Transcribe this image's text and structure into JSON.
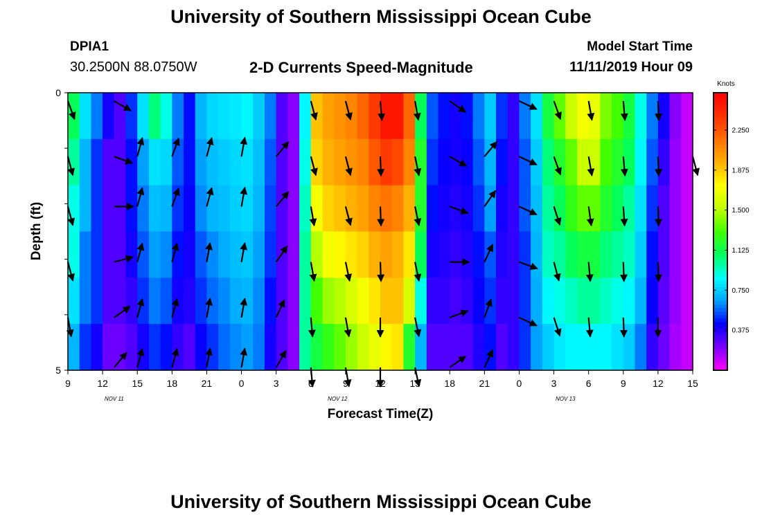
{
  "header": {
    "title_top": "University of Southern Mississippi Ocean Cube",
    "title_bottom": "University of Southern Mississippi Ocean Cube",
    "station_id": "DPIA1",
    "coords": "30.2500N 88.0750W",
    "subtitle": "2-D Currents Speed-Magnitude",
    "model_label": "Model Start Time",
    "model_time": "11/11/2019 Hour 09"
  },
  "chart_data": {
    "type": "heatmap",
    "title": "2-D Currents Speed-Magnitude",
    "xlabel": "Forecast Time(Z)",
    "ylabel": "Depth (ft)",
    "x_tick_labels": [
      "9",
      "12",
      "15",
      "18",
      "21",
      "0",
      "3",
      "6",
      "9",
      "12",
      "15",
      "18",
      "21",
      "0",
      "3",
      "6",
      "9",
      "12",
      "15"
    ],
    "x_day_labels": [
      "NOV 11",
      "NOV 12",
      "NOV 13"
    ],
    "y_ticks": [
      0,
      5
    ],
    "y_range": [
      0,
      5
    ],
    "x_range_hours": [
      0,
      54
    ],
    "colorbar": {
      "unit": "Knots",
      "range": [
        0,
        2.6
      ],
      "ticks": [
        "0.375",
        "0.750",
        "1.125",
        "1.500",
        "1.875",
        "2.250"
      ],
      "colors": [
        "#ff00ff",
        "#8000ff",
        "#0000ff",
        "#00a0ff",
        "#00ffff",
        "#00ff60",
        "#40ff00",
        "#c0ff00",
        "#ffff00",
        "#ffb000",
        "#ff7000",
        "#ff3000",
        "#ff0000"
      ]
    },
    "depth_bins": 6,
    "speed_series": [
      {
        "hours_from_start": 0,
        "speed": [
          1.1,
          1.0,
          0.9,
          0.9,
          0.8,
          0.7
        ]
      },
      {
        "hours_from_start": 1,
        "speed": [
          0.8,
          0.7,
          0.7,
          0.6,
          0.6,
          0.5
        ]
      },
      {
        "hours_from_start": 2,
        "speed": [
          0.6,
          0.5,
          0.5,
          0.5,
          0.5,
          0.4
        ]
      },
      {
        "hours_from_start": 3,
        "speed": [
          0.4,
          0.3,
          0.3,
          0.3,
          0.3,
          0.25
        ]
      },
      {
        "hours_from_start": 4,
        "speed": [
          0.3,
          0.3,
          0.3,
          0.3,
          0.3,
          0.25
        ]
      },
      {
        "hours_from_start": 5,
        "speed": [
          0.5,
          0.45,
          0.45,
          0.4,
          0.35,
          0.3
        ]
      },
      {
        "hours_from_start": 6,
        "speed": [
          0.8,
          0.65,
          0.6,
          0.55,
          0.5,
          0.4
        ]
      },
      {
        "hours_from_start": 7,
        "speed": [
          1.05,
          0.8,
          0.72,
          0.65,
          0.6,
          0.5
        ]
      },
      {
        "hours_from_start": 8,
        "speed": [
          0.9,
          0.78,
          0.7,
          0.62,
          0.55,
          0.45
        ]
      },
      {
        "hours_from_start": 9,
        "speed": [
          0.6,
          0.55,
          0.5,
          0.45,
          0.4,
          0.35
        ]
      },
      {
        "hours_from_start": 10,
        "speed": [
          0.45,
          0.45,
          0.42,
          0.4,
          0.38,
          0.3
        ]
      },
      {
        "hours_from_start": 11,
        "speed": [
          0.7,
          0.65,
          0.62,
          0.55,
          0.5,
          0.42
        ]
      },
      {
        "hours_from_start": 12,
        "speed": [
          0.78,
          0.72,
          0.7,
          0.62,
          0.58,
          0.5
        ]
      },
      {
        "hours_from_start": 13,
        "speed": [
          0.8,
          0.75,
          0.72,
          0.68,
          0.62,
          0.58
        ]
      },
      {
        "hours_from_start": 14,
        "speed": [
          0.82,
          0.78,
          0.76,
          0.72,
          0.68,
          0.62
        ]
      },
      {
        "hours_from_start": 15,
        "speed": [
          0.85,
          0.8,
          0.78,
          0.74,
          0.7,
          0.65
        ]
      },
      {
        "hours_from_start": 16,
        "speed": [
          0.75,
          0.72,
          0.7,
          0.66,
          0.62,
          0.6
        ]
      },
      {
        "hours_from_start": 17,
        "speed": [
          0.6,
          0.55,
          0.52,
          0.5,
          0.45,
          0.4
        ]
      },
      {
        "hours_from_start": 18,
        "speed": [
          0.3,
          0.3,
          0.3,
          0.3,
          0.3,
          0.3
        ]
      },
      {
        "hours_from_start": 19,
        "speed": [
          0.2,
          0.2,
          0.2,
          0.2,
          0.2,
          0.2
        ]
      },
      {
        "hours_from_start": 20,
        "speed": [
          0.85,
          0.9,
          0.95,
          1.0,
          1.0,
          1.0
        ]
      },
      {
        "hours_from_start": 21,
        "speed": [
          1.9,
          1.85,
          1.7,
          1.5,
          1.3,
          1.15
        ]
      },
      {
        "hours_from_start": 22,
        "speed": [
          2.0,
          1.95,
          1.85,
          1.7,
          1.45,
          1.25
        ]
      },
      {
        "hours_from_start": 23,
        "speed": [
          2.05,
          2.0,
          1.9,
          1.75,
          1.5,
          1.35
        ]
      },
      {
        "hours_from_start": 24,
        "speed": [
          2.1,
          2.05,
          1.95,
          1.8,
          1.6,
          1.45
        ]
      },
      {
        "hours_from_start": 25,
        "speed": [
          2.2,
          2.1,
          2.0,
          1.85,
          1.7,
          1.55
        ]
      },
      {
        "hours_from_start": 26,
        "speed": [
          2.35,
          2.25,
          2.1,
          1.95,
          1.8,
          1.65
        ]
      },
      {
        "hours_from_start": 27,
        "speed": [
          2.5,
          2.35,
          2.15,
          2.0,
          1.9,
          1.75
        ]
      },
      {
        "hours_from_start": 28,
        "speed": [
          2.5,
          2.3,
          2.1,
          1.95,
          1.9,
          1.8
        ]
      },
      {
        "hours_from_start": 29,
        "speed": [
          2.2,
          2.1,
          1.95,
          1.8,
          1.6,
          1.2
        ]
      },
      {
        "hours_from_start": 30,
        "speed": [
          1.1,
          1.2,
          1.2,
          1.1,
          0.9,
          0.7
        ]
      },
      {
        "hours_from_start": 31,
        "speed": [
          0.55,
          0.5,
          0.45,
          0.4,
          0.35,
          0.3
        ]
      },
      {
        "hours_from_start": 32,
        "speed": [
          0.45,
          0.42,
          0.4,
          0.38,
          0.35,
          0.3
        ]
      },
      {
        "hours_from_start": 33,
        "speed": [
          0.4,
          0.4,
          0.38,
          0.35,
          0.32,
          0.3
        ]
      },
      {
        "hours_from_start": 34,
        "speed": [
          0.45,
          0.42,
          0.4,
          0.38,
          0.35,
          0.3
        ]
      },
      {
        "hours_from_start": 35,
        "speed": [
          0.6,
          0.55,
          0.5,
          0.45,
          0.42,
          0.38
        ]
      },
      {
        "hours_from_start": 36,
        "speed": [
          0.75,
          0.7,
          0.65,
          0.55,
          0.5,
          0.45
        ]
      },
      {
        "hours_from_start": 37,
        "speed": [
          0.5,
          0.45,
          0.4,
          0.38,
          0.35,
          0.3
        ]
      },
      {
        "hours_from_start": 38,
        "speed": [
          0.35,
          0.35,
          0.35,
          0.35,
          0.35,
          0.35
        ]
      },
      {
        "hours_from_start": 39,
        "speed": [
          0.6,
          0.55,
          0.55,
          0.5,
          0.5,
          0.5
        ]
      },
      {
        "hours_from_start": 40,
        "speed": [
          0.8,
          0.75,
          0.72,
          0.7,
          0.68,
          0.65
        ]
      },
      {
        "hours_from_start": 41,
        "speed": [
          1.15,
          1.05,
          1.0,
          0.95,
          0.85,
          0.75
        ]
      },
      {
        "hours_from_start": 42,
        "speed": [
          1.35,
          1.2,
          1.1,
          1.0,
          0.9,
          0.82
        ]
      },
      {
        "hours_from_start": 43,
        "speed": [
          1.55,
          1.35,
          1.25,
          1.1,
          0.95,
          0.85
        ]
      },
      {
        "hours_from_start": 44,
        "speed": [
          1.7,
          1.55,
          1.35,
          1.15,
          1.0,
          0.85
        ]
      },
      {
        "hours_from_start": 45,
        "speed": [
          1.65,
          1.55,
          1.35,
          1.15,
          1.0,
          0.85
        ]
      },
      {
        "hours_from_start": 46,
        "speed": [
          1.4,
          1.3,
          1.2,
          1.05,
          0.95,
          0.85
        ]
      },
      {
        "hours_from_start": 47,
        "speed": [
          1.3,
          1.2,
          1.1,
          1.0,
          0.9,
          0.8
        ]
      },
      {
        "hours_from_start": 48,
        "speed": [
          1.15,
          1.1,
          1.0,
          0.95,
          0.85,
          0.75
        ]
      },
      {
        "hours_from_start": 49,
        "speed": [
          0.9,
          0.85,
          0.8,
          0.75,
          0.7,
          0.6
        ]
      },
      {
        "hours_from_start": 50,
        "speed": [
          0.6,
          0.55,
          0.5,
          0.45,
          0.42,
          0.35
        ]
      },
      {
        "hours_from_start": 51,
        "speed": [
          0.4,
          0.35,
          0.3,
          0.3,
          0.28,
          0.25
        ]
      },
      {
        "hours_from_start": 52,
        "speed": [
          0.2,
          0.18,
          0.18,
          0.18,
          0.18,
          0.15
        ]
      },
      {
        "hours_from_start": 53,
        "speed": [
          0.1,
          0.1,
          0.1,
          0.1,
          0.1,
          0.1
        ]
      }
    ],
    "vector_rows_depth": [
      0.15,
      1.15,
      2.05,
      3.05,
      4.05,
      4.95
    ],
    "vector_series": [
      {
        "hours_from_start": 0,
        "angles": [
          160,
          165,
          165,
          165,
          170,
          null
        ]
      },
      {
        "hours_from_start": 4,
        "angles": [
          120,
          110,
          90,
          75,
          55,
          40
        ]
      },
      {
        "hours_from_start": 6,
        "angles": [
          null,
          15,
          15,
          15,
          15,
          15
        ]
      },
      {
        "hours_from_start": 9,
        "angles": [
          null,
          20,
          20,
          15,
          15,
          15
        ]
      },
      {
        "hours_from_start": 12,
        "angles": [
          null,
          15,
          15,
          10,
          10,
          10
        ]
      },
      {
        "hours_from_start": 15,
        "angles": [
          null,
          10,
          10,
          10,
          10,
          10
        ]
      },
      {
        "hours_from_start": 18,
        "angles": [
          null,
          40,
          40,
          35,
          25,
          30
        ]
      },
      {
        "hours_from_start": 21,
        "angles": [
          165,
          165,
          170,
          170,
          175,
          175
        ]
      },
      {
        "hours_from_start": 24,
        "angles": [
          165,
          165,
          165,
          168,
          170,
          170
        ]
      },
      {
        "hours_from_start": 27,
        "angles": [
          175,
          178,
          178,
          178,
          180,
          180
        ]
      },
      {
        "hours_from_start": 30,
        "angles": [
          170,
          168,
          168,
          168,
          168,
          168
        ]
      },
      {
        "hours_from_start": 33,
        "angles": [
          125,
          120,
          110,
          90,
          70,
          55
        ]
      },
      {
        "hours_from_start": 36,
        "angles": [
          null,
          40,
          35,
          25,
          20,
          25
        ]
      },
      {
        "hours_from_start": 39,
        "angles": [
          115,
          115,
          115,
          110,
          115,
          null
        ]
      },
      {
        "hours_from_start": 42,
        "angles": [
          160,
          160,
          162,
          165,
          162,
          null
        ]
      },
      {
        "hours_from_start": 45,
        "angles": [
          170,
          170,
          172,
          175,
          175,
          null
        ]
      },
      {
        "hours_from_start": 48,
        "angles": [
          175,
          175,
          176,
          178,
          178,
          null
        ]
      },
      {
        "hours_from_start": 51,
        "angles": [
          178,
          178,
          178,
          178,
          180,
          null
        ]
      },
      {
        "hours_from_start": 54,
        "angles": [
          null,
          165,
          null,
          null,
          null,
          null
        ]
      }
    ]
  }
}
